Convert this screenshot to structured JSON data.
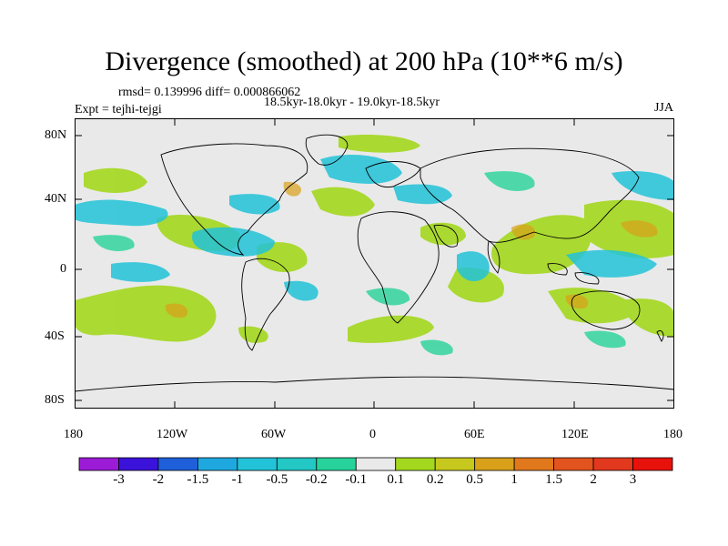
{
  "title": "Divergence (smoothed) at 200 hPa (10**6 m/s)",
  "stats": "rmsd= 0.139996 diff= 0.000866062",
  "period": "18.5kyr-18.0kyr - 19.0kyr-18.5kyr",
  "expt": "Expt = tejhi-tejgi",
  "season": "JJA",
  "lat_ticks": [
    "80N",
    "40N",
    "0",
    "40S",
    "80S"
  ],
  "lon_ticks": [
    "180",
    "120W",
    "60W",
    "0",
    "60E",
    "120E",
    "180"
  ],
  "colorbar": {
    "labels": [
      "-3",
      "-2",
      "-1.5",
      "-1",
      "-0.5",
      "-0.2",
      "-0.1",
      "0.1",
      "0.2",
      "0.5",
      "1",
      "1.5",
      "2",
      "3"
    ],
    "colors": [
      "#9b1bd6",
      "#3b12d9",
      "#1f5fd9",
      "#1fa8e0",
      "#22c3d8",
      "#23c7c4",
      "#27d39a",
      "#e9e9e9",
      "#a4d81e",
      "#c7c81d",
      "#d9a019",
      "#e1781c",
      "#e2541d",
      "#e2381d",
      "#e8120c"
    ]
  },
  "colors": {
    "background": "#e9e9e9",
    "coast": "#000000"
  }
}
